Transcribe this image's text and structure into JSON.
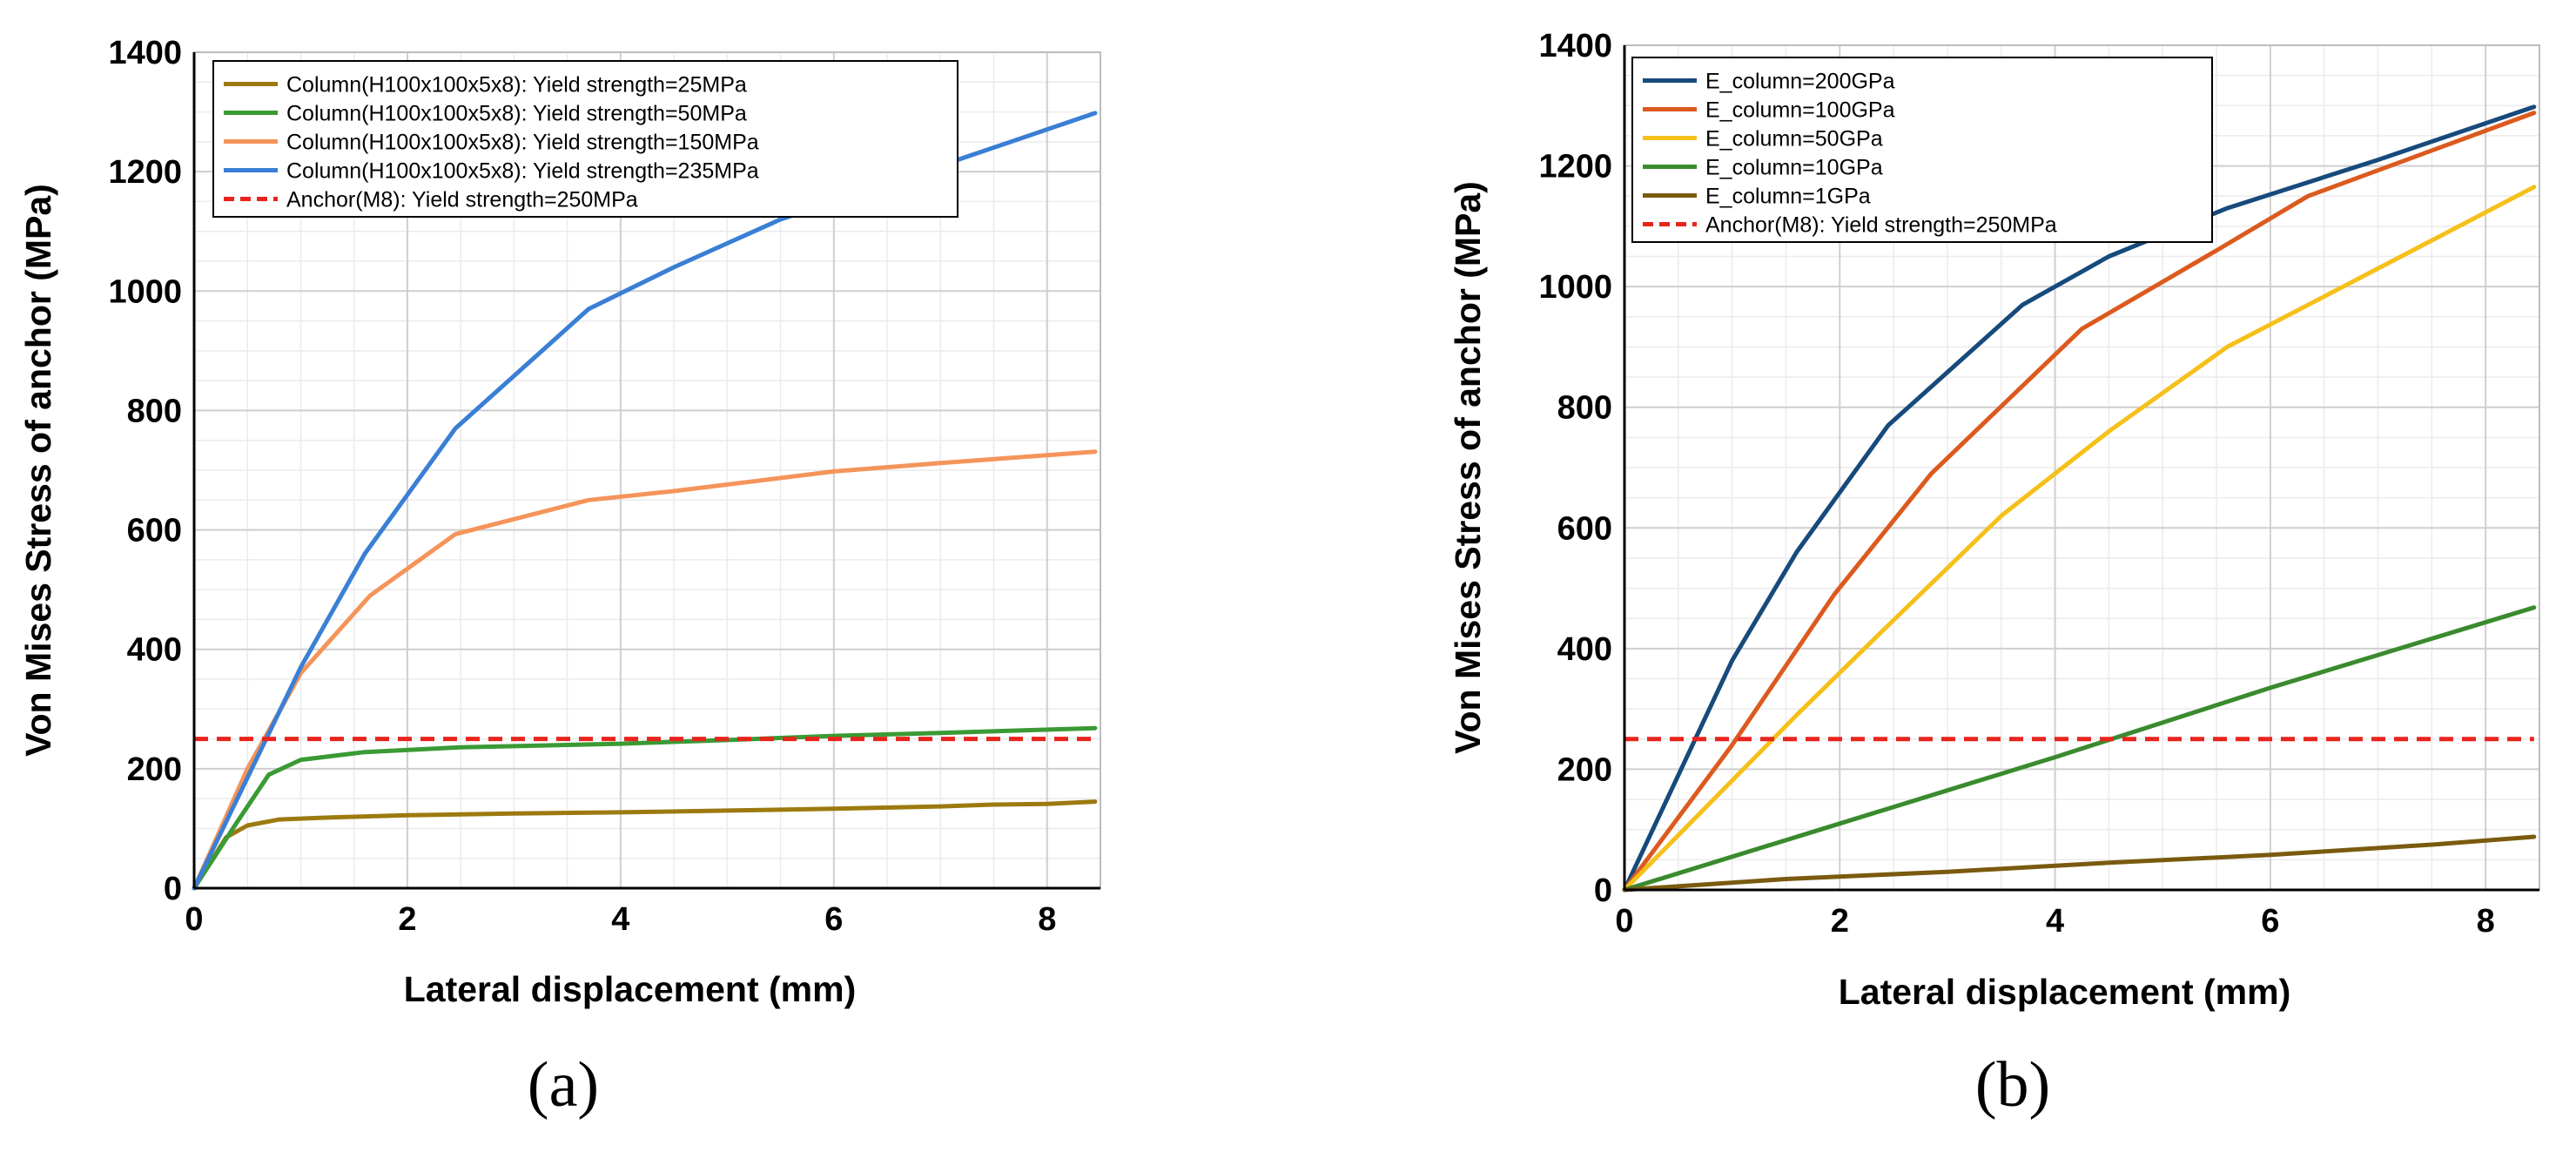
{
  "chart_data": [
    {
      "type": "line",
      "panel_label": "(a)",
      "xlabel": "Lateral displacement (mm)",
      "ylabel": "Von Mises Stress of anchor (MPa)",
      "xlim": [
        0,
        8.5
      ],
      "ylim": [
        0,
        1400
      ],
      "xticks": [
        0,
        2,
        4,
        6,
        8
      ],
      "yticks": [
        0,
        200,
        400,
        600,
        800,
        1000,
        1200,
        1400
      ],
      "xtick_labels": [
        "0",
        "2",
        "4",
        "6",
        "8"
      ],
      "ytick_labels": [
        "0",
        "200",
        "400",
        "600",
        "800",
        "1000",
        "1200",
        "1400"
      ],
      "grid": true,
      "legend_position": "top-left",
      "series": [
        {
          "name": "Column(H100x100x5x8): Yield strength=25MPa",
          "color": "#9c7a0f",
          "dashed": false,
          "x": [
            0,
            0.3,
            0.5,
            0.8,
            1.2,
            2,
            3,
            4,
            5,
            6,
            7,
            7.5,
            8,
            8.45
          ],
          "y": [
            0,
            85,
            105,
            115,
            118,
            122,
            125,
            127,
            130,
            133,
            137,
            140,
            141,
            145
          ]
        },
        {
          "name": "Column(H100x100x5x8): Yield strength=50MPa",
          "color": "#3a9a34",
          "dashed": false,
          "x": [
            0,
            0.4,
            0.7,
            1.0,
            1.6,
            2.5,
            4,
            5,
            6,
            7,
            8.45
          ],
          "y": [
            0,
            110,
            190,
            215,
            228,
            236,
            242,
            248,
            255,
            260,
            268
          ]
        },
        {
          "name": "Column(H100x100x5x8): Yield strength=150MPa",
          "color": "#f5945a",
          "dashed": false,
          "x": [
            0,
            0.5,
            1.0,
            1.65,
            2.45,
            3.7,
            4.5,
            6,
            7,
            8.45
          ],
          "y": [
            0,
            200,
            360,
            490,
            593,
            650,
            665,
            698,
            712,
            731
          ]
        },
        {
          "name": "Column(H100x100x5x8): Yield strength=235MPa",
          "color": "#3a7fd5",
          "dashed": false,
          "x": [
            0,
            1.0,
            1.6,
            2.45,
            3.7,
            4.5,
            5.5,
            7,
            8.45
          ],
          "y": [
            0,
            370,
            560,
            770,
            970,
            1040,
            1120,
            1210,
            1298
          ]
        },
        {
          "name": "Anchor(M8): Yield strength=250MPa",
          "color": "#e8241d",
          "dashed": true,
          "x": [
            0,
            8.45
          ],
          "y": [
            250,
            250
          ]
        }
      ]
    },
    {
      "type": "line",
      "panel_label": "(b)",
      "xlabel": "Lateral displacement (mm)",
      "ylabel": "Von Mises Stress of anchor (MPa)",
      "xlim": [
        0,
        8.5
      ],
      "ylim": [
        0,
        1400
      ],
      "xticks": [
        0,
        2,
        4,
        6,
        8
      ],
      "yticks": [
        0,
        200,
        400,
        600,
        800,
        1000,
        1200,
        1400
      ],
      "xtick_labels": [
        "0",
        "2",
        "4",
        "6",
        "8"
      ],
      "ytick_labels": [
        "0",
        "200",
        "400",
        "600",
        "800",
        "1000",
        "1200",
        "1400"
      ],
      "grid": true,
      "legend_position": "top-left",
      "series": [
        {
          "name": "E_column=200GPa",
          "color": "#174a7c",
          "dashed": false,
          "x": [
            0,
            1.0,
            1.6,
            2.45,
            3.7,
            4.5,
            5.6,
            7,
            8.45
          ],
          "y": [
            0,
            380,
            560,
            770,
            970,
            1050,
            1130,
            1210,
            1298
          ]
        },
        {
          "name": "E_column=100GPa",
          "color": "#dc5a1e",
          "dashed": false,
          "x": [
            0,
            1.0,
            1.95,
            2.85,
            4.25,
            5.5,
            6.35,
            8.45
          ],
          "y": [
            0,
            240,
            490,
            690,
            930,
            1060,
            1150,
            1288
          ]
        },
        {
          "name": "E_column=50GPa",
          "color": "#f6c01a",
          "dashed": false,
          "x": [
            0,
            1.6,
            2.4,
            3.5,
            4.5,
            5.6,
            7,
            8.45
          ],
          "y": [
            0,
            290,
            430,
            620,
            760,
            900,
            1030,
            1165
          ]
        },
        {
          "name": "E_column=10GPa",
          "color": "#3a8a2e",
          "dashed": false,
          "x": [
            0,
            2,
            4,
            6,
            8.45
          ],
          "y": [
            0,
            110,
            220,
            335,
            468
          ]
        },
        {
          "name": "E_column=1GPa",
          "color": "#7a5a0f",
          "dashed": false,
          "x": [
            0,
            1.5,
            3,
            4.5,
            6,
            7.5,
            8.45
          ],
          "y": [
            0,
            18,
            30,
            45,
            58,
            75,
            88
          ]
        },
        {
          "name": "Anchor(M8): Yield strength=250MPa",
          "color": "#e8241d",
          "dashed": true,
          "x": [
            0,
            8.45
          ],
          "y": [
            250,
            250
          ]
        }
      ]
    }
  ]
}
